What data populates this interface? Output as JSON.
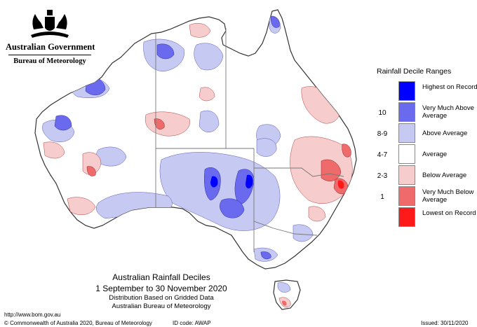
{
  "header": {
    "gov_name": "Australian Government",
    "bureau_name": "Bureau of Meteorology"
  },
  "legend": {
    "title": "Rainfall Decile Ranges",
    "items": [
      {
        "code": "",
        "label": "Highest on Record",
        "color": "#0000ff"
      },
      {
        "code": "10",
        "label": "Very Much Above Average",
        "color": "#6a6aee"
      },
      {
        "code": "8-9",
        "label": "Above Average",
        "color": "#c6c9f2"
      },
      {
        "code": "4-7",
        "label": "Average",
        "color": "#ffffff"
      },
      {
        "code": "2-3",
        "label": "Below Average",
        "color": "#f6cccc"
      },
      {
        "code": "1",
        "label": "Very Much Below Average",
        "color": "#ef6a6a"
      },
      {
        "code": "",
        "label": "Lowest on Record",
        "color": "#ff1a1a"
      }
    ]
  },
  "map_title": {
    "line1": "Australian Rainfall Deciles",
    "line2": "1 September to 30 November 2020",
    "line3": "Distribution Based on Gridded Data",
    "line4": "Australian Bureau of Meteorology"
  },
  "footer": {
    "url": "http://www.bom.gov.au",
    "copyright": "© Commonwealth of Australia 2020, Bureau of Meteorology",
    "id_code": "ID code: AWAP",
    "issued": "Issued: 30/11/2020"
  },
  "colors": {
    "coast": "#333333",
    "border": "#777777"
  }
}
